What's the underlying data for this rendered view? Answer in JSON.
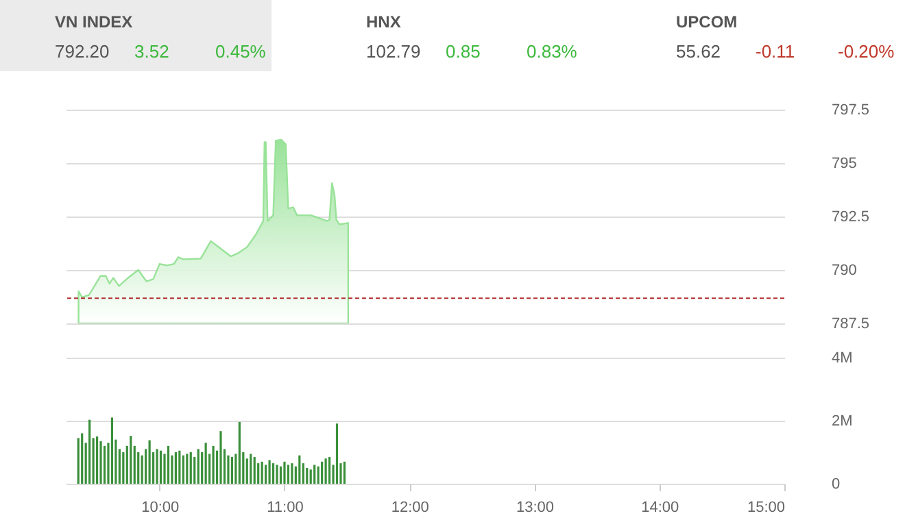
{
  "chart_data": [
    {
      "type": "area",
      "x": [
        9.352,
        9.38,
        9.436,
        9.528,
        9.57,
        9.6,
        9.63,
        9.675,
        9.748,
        9.83,
        9.895,
        9.95,
        10.0,
        10.06,
        10.115,
        10.15,
        10.19,
        10.33,
        10.41,
        10.46,
        10.57,
        10.63,
        10.7,
        10.77,
        10.83,
        10.84,
        10.85,
        10.865,
        10.91,
        10.93,
        10.975,
        11.01,
        11.03,
        11.07,
        11.1,
        11.21,
        11.28,
        11.34,
        11.36,
        11.38,
        11.4,
        11.415,
        11.44,
        11.51
      ],
      "series": [
        {
          "color": "#8fe08f",
          "values": [
            789.0,
            788.72,
            788.83,
            789.72,
            789.72,
            789.36,
            789.63,
            789.25,
            789.63,
            790.0,
            789.47,
            789.57,
            790.28,
            790.21,
            790.28,
            790.6,
            790.5,
            790.53,
            791.35,
            791.13,
            790.64,
            790.79,
            791.07,
            791.65,
            792.29,
            795.98,
            795.98,
            792.29,
            792.56,
            796.05,
            796.09,
            795.88,
            792.88,
            792.93,
            792.56,
            792.56,
            792.42,
            792.29,
            792.35,
            794.06,
            793.53,
            792.35,
            792.13,
            792.2
          ]
        }
      ],
      "xlim": [
        9.25,
        15
      ],
      "ylim": [
        787.5,
        797.5
      ],
      "yticks": [
        787.5,
        790,
        792.5,
        795,
        797.5
      ],
      "ref_lines": [
        {
          "axis": "y",
          "value": 788.68,
          "color": "#b03030",
          "line_style": "dashed"
        }
      ],
      "grid": "y",
      "legend": false,
      "marker": "none",
      "tick_labels": "y"
    },
    {
      "type": "bar",
      "x": [
        9.35,
        9.38,
        9.41,
        9.44,
        9.47,
        9.5,
        9.53,
        9.56,
        9.59,
        9.62,
        9.65,
        9.68,
        9.71,
        9.74,
        9.77,
        9.8,
        9.83,
        9.86,
        9.89,
        9.92,
        9.95,
        9.98,
        10.01,
        10.04,
        10.07,
        10.1,
        10.13,
        10.16,
        10.19,
        10.22,
        10.25,
        10.28,
        10.31,
        10.34,
        10.37,
        10.4,
        10.43,
        10.46,
        10.49,
        10.52,
        10.55,
        10.58,
        10.61,
        10.64,
        10.67,
        10.7,
        10.73,
        10.76,
        10.79,
        10.82,
        10.85,
        10.88,
        10.91,
        10.94,
        10.97,
        11.0,
        11.03,
        11.06,
        11.09,
        11.12,
        11.15,
        11.18,
        11.21,
        11.24,
        11.27,
        11.3,
        11.33,
        11.36,
        11.39,
        11.42,
        11.45,
        11.48
      ],
      "series": [
        {
          "color": "#3a8f3a",
          "values": [
            1450000,
            1600000,
            1300000,
            2030000,
            1450000,
            1500000,
            1350000,
            1200000,
            1300000,
            2100000,
            1400000,
            1100000,
            1000000,
            1200000,
            1520000,
            1200000,
            1000000,
            900000,
            1100000,
            1380000,
            1000000,
            1100000,
            1050000,
            950000,
            1200000,
            900000,
            1000000,
            1050000,
            900000,
            950000,
            1000000,
            850000,
            1100000,
            1000000,
            1300000,
            950000,
            1200000,
            1050000,
            1670000,
            1100000,
            900000,
            850000,
            950000,
            1960000,
            1000000,
            800000,
            950000,
            850000,
            650000,
            700000,
            600000,
            750000,
            650000,
            600000,
            550000,
            700000,
            600000,
            650000,
            550000,
            900000,
            650000,
            500000,
            450000,
            600000,
            550000,
            700000,
            800000,
            850000,
            600000,
            1910000,
            650000,
            700000
          ]
        }
      ],
      "xlim": [
        9.25,
        15
      ],
      "xticks": [
        {
          "value": 10,
          "label": "10:00"
        },
        {
          "value": 11,
          "label": "11:00"
        },
        {
          "value": 12,
          "label": "12:00"
        },
        {
          "value": 13,
          "label": "13:00"
        },
        {
          "value": 14,
          "label": "14:00"
        },
        {
          "value": 15,
          "label": "15:00"
        }
      ],
      "ylim": [
        0,
        4000000
      ],
      "yticks": [
        0,
        {
          "value": 2000000,
          "label": "2M"
        },
        {
          "value": 4000000,
          "label": "4M"
        }
      ],
      "grid": "y",
      "legend": false
    },
    {
      "type": "other",
      "annotations": [
        "VN INDEX",
        "792.20",
        "3.52",
        "0.45%",
        "HNX",
        "102.79",
        "0.85",
        "0.83%",
        "UPCOM",
        "55.62",
        "-0.11",
        "-0.20%"
      ],
      "colors": [
        "#555555",
        "#555555",
        "#3cb93c",
        "#3cb93c",
        "#555555",
        "#555555",
        "#3cb93c",
        "#3cb93c",
        "#555555",
        "#555555",
        "#c0392b",
        "#c0392b"
      ]
    }
  ]
}
